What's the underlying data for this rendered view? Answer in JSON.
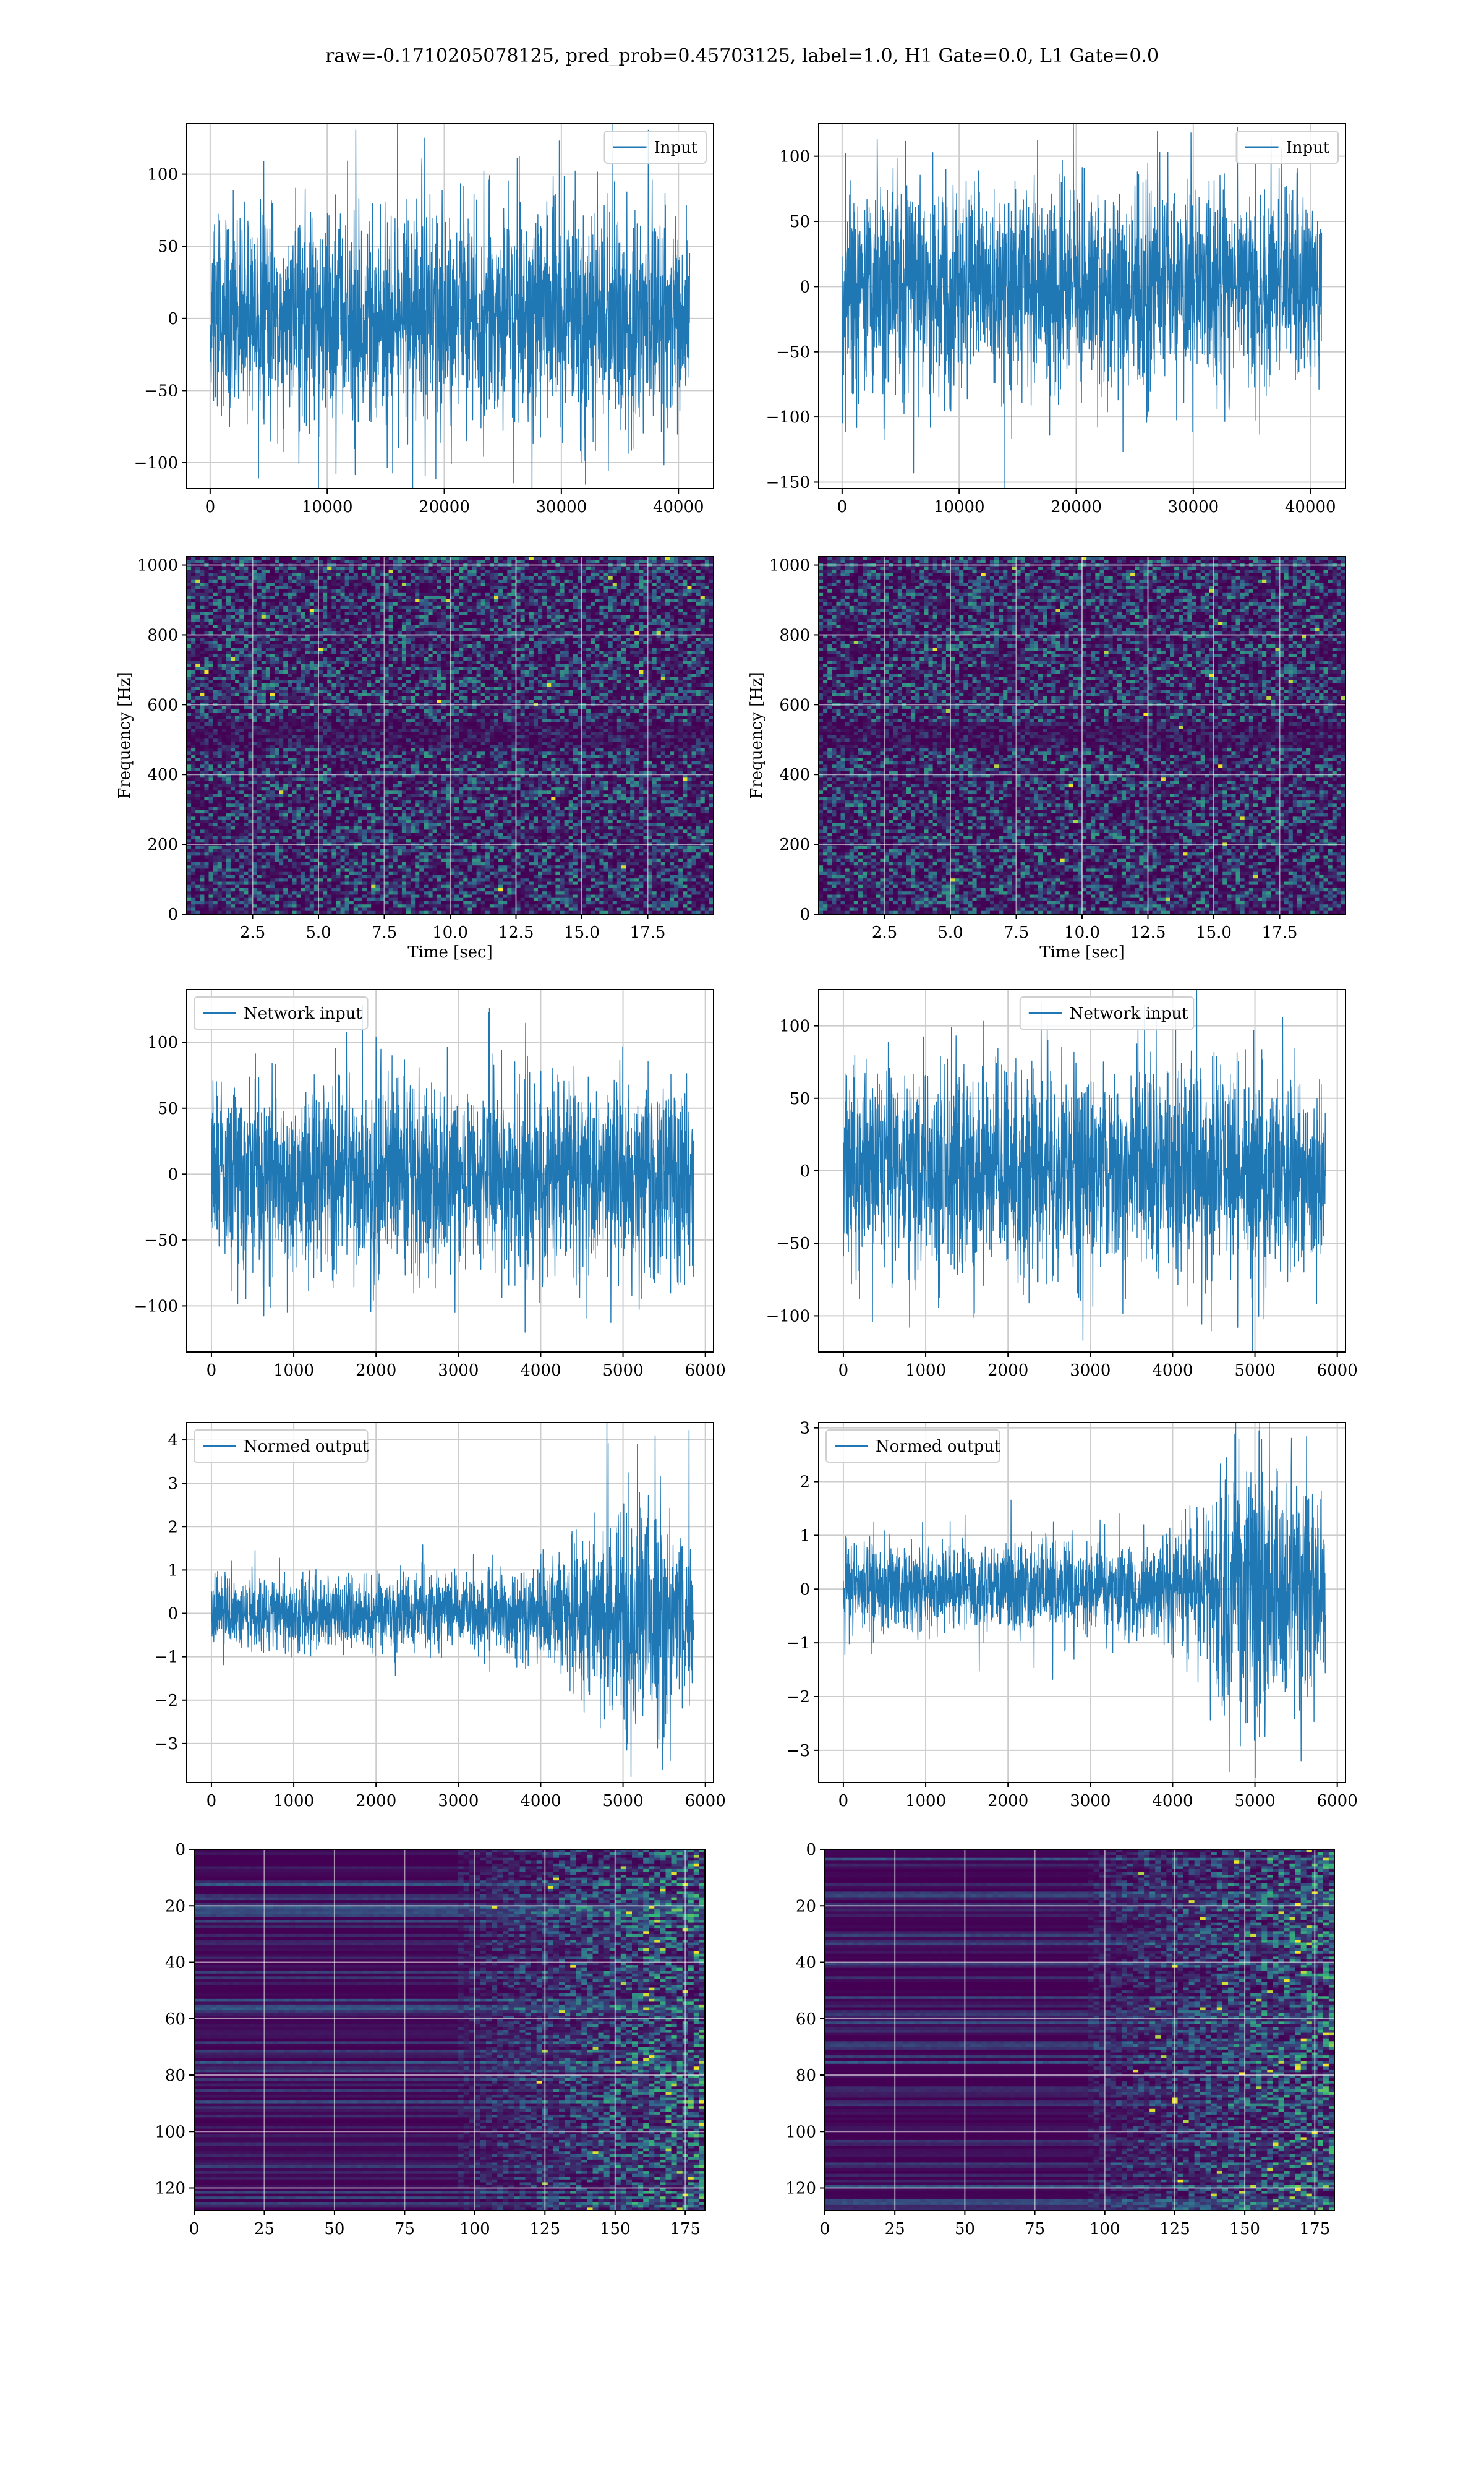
{
  "title": "raw=-0.1710205078125, pred_prob=0.45703125, label=1.0, H1 Gate=0.0, L1 Gate=0.0",
  "colors": {
    "line": "#1f77b4",
    "grid": "#cccccc",
    "spec_base": "#440154",
    "spec_mid": "#31688e",
    "spec_high": "#35b779",
    "spec_peak": "#fde725"
  },
  "chart_data": [
    {
      "type": "line",
      "name": "input-left",
      "legend": "Input",
      "legend_loc": "upper right",
      "xlim": [
        -2000,
        43000
      ],
      "ylim": [
        -118,
        135
      ],
      "xticks": [
        0,
        10000,
        20000,
        30000,
        40000
      ],
      "yticks": [
        -100,
        -50,
        0,
        50,
        100
      ],
      "x_range": [
        0,
        40960
      ],
      "amp": 38,
      "spike_max": 123,
      "spike_min": -115,
      "envelope": [
        1,
        1,
        1,
        1,
        1,
        1,
        1,
        1,
        1,
        1,
        1,
        1,
        1,
        1,
        1,
        1,
        1,
        1,
        1,
        1,
        1,
        1,
        1,
        1
      ],
      "grid": true
    },
    {
      "type": "line",
      "name": "input-right",
      "legend": "Input",
      "legend_loc": "upper right",
      "xlim": [
        -2000,
        43000
      ],
      "ylim": [
        -155,
        125
      ],
      "xticks": [
        0,
        10000,
        20000,
        30000,
        40000
      ],
      "yticks": [
        -150,
        -100,
        -50,
        0,
        50,
        100
      ],
      "x_range": [
        0,
        40960
      ],
      "amp": 38,
      "spike_max": 122,
      "spike_min": -143,
      "envelope": [
        1,
        1,
        1,
        1,
        1,
        1,
        1,
        1,
        1,
        1,
        1,
        1,
        1,
        1,
        1,
        1,
        1,
        1,
        1,
        1,
        1,
        1,
        1,
        1
      ],
      "grid": true
    },
    {
      "type": "heatmap",
      "name": "spectrogram-left",
      "xlabel": "Time [sec]",
      "ylabel": "Frequency [Hz]",
      "xlim": [
        0,
        20
      ],
      "ylim": [
        0,
        1024
      ],
      "xticks": [
        2.5,
        5.0,
        7.5,
        10.0,
        12.5,
        15.0,
        17.5
      ],
      "xtick_labels": [
        "2.5",
        "5.0",
        "7.5",
        "10.0",
        "12.5",
        "15.0",
        "17.5"
      ],
      "yticks": [
        0,
        200,
        400,
        600,
        800,
        1000
      ],
      "grid": true
    },
    {
      "type": "heatmap",
      "name": "spectrogram-right",
      "xlabel": "Time [sec]",
      "ylabel": "Frequency [Hz]",
      "xlim": [
        0,
        20
      ],
      "ylim": [
        0,
        1024
      ],
      "xticks": [
        2.5,
        5.0,
        7.5,
        10.0,
        12.5,
        15.0,
        17.5
      ],
      "xtick_labels": [
        "2.5",
        "5.0",
        "7.5",
        "10.0",
        "12.5",
        "15.0",
        "17.5"
      ],
      "yticks": [
        0,
        200,
        400,
        600,
        800,
        1000
      ],
      "grid": true
    },
    {
      "type": "line",
      "name": "network-input-left",
      "legend": "Network input",
      "legend_loc": "upper left",
      "xlim": [
        -300,
        6100
      ],
      "ylim": [
        -135,
        140
      ],
      "xticks": [
        0,
        1000,
        2000,
        3000,
        4000,
        5000,
        6000
      ],
      "yticks": [
        -100,
        -50,
        0,
        50,
        100
      ],
      "x_range": [
        0,
        5856
      ],
      "amp": 36,
      "spike_max": 128,
      "spike_min": -120,
      "envelope": [
        1,
        1,
        1,
        1,
        1,
        1,
        1,
        1,
        1,
        1,
        1,
        1,
        1,
        1,
        1,
        1,
        1,
        1,
        1,
        1,
        1,
        1,
        1,
        1
      ],
      "grid": true
    },
    {
      "type": "line",
      "name": "network-input-right",
      "legend": "Network input",
      "legend_loc": "upper center",
      "xlim": [
        -300,
        6100
      ],
      "ylim": [
        -125,
        125
      ],
      "xticks": [
        0,
        1000,
        2000,
        3000,
        4000,
        5000,
        6000
      ],
      "yticks": [
        -100,
        -50,
        0,
        50,
        100
      ],
      "x_range": [
        0,
        5856
      ],
      "amp": 36,
      "spike_max": 116,
      "spike_min": -108,
      "envelope": [
        1,
        1,
        1,
        1,
        1,
        1,
        1,
        1,
        1,
        1,
        1,
        1,
        1,
        1,
        1,
        1,
        1,
        1,
        1,
        1,
        1,
        1,
        1,
        1
      ],
      "grid": true
    },
    {
      "type": "line",
      "name": "normed-output-left",
      "legend": "Normed output",
      "legend_loc": "upper left",
      "xlim": [
        -300,
        6100
      ],
      "ylim": [
        -3.9,
        4.4
      ],
      "xticks": [
        0,
        1000,
        2000,
        3000,
        4000,
        5000,
        6000
      ],
      "yticks": [
        -3,
        -2,
        -1,
        0,
        1,
        2,
        3,
        4
      ],
      "x_range": [
        0,
        5856
      ],
      "amp": 0.42,
      "spike_max": 4.1,
      "spike_min": -3.6,
      "envelope": [
        1,
        1,
        1,
        1,
        1,
        1,
        1,
        1,
        1,
        1,
        1,
        1,
        1,
        1.1,
        1.2,
        1.3,
        1.5,
        1.8,
        2.2,
        2.7,
        3.1,
        3.2,
        3.0,
        2.8
      ],
      "grid": true
    },
    {
      "type": "line",
      "name": "normed-output-right",
      "legend": "Normed output",
      "legend_loc": "upper left",
      "xlim": [
        -300,
        6100
      ],
      "ylim": [
        -3.6,
        3.1
      ],
      "xticks": [
        0,
        1000,
        2000,
        3000,
        4000,
        5000,
        6000
      ],
      "yticks": [
        -3,
        -2,
        -1,
        0,
        1,
        2,
        3
      ],
      "x_range": [
        0,
        5856
      ],
      "amp": 0.42,
      "spike_max": 2.8,
      "spike_min": -3.4,
      "envelope": [
        1,
        1,
        1,
        1,
        1,
        1,
        1,
        1,
        1,
        1,
        1,
        1,
        1,
        1,
        1,
        1.05,
        1.1,
        1.3,
        2.8,
        3.3,
        3.2,
        3.0,
        2.5,
        2.0
      ],
      "grid": true
    },
    {
      "type": "heatmap",
      "name": "feature-map-left",
      "xlim": [
        0,
        182
      ],
      "ylim": [
        128,
        0
      ],
      "xticks": [
        0,
        25,
        50,
        75,
        100,
        125,
        150,
        175
      ],
      "yticks": [
        0,
        20,
        40,
        60,
        80,
        100,
        120
      ],
      "grid": true
    },
    {
      "type": "heatmap",
      "name": "feature-map-right",
      "xlim": [
        0,
        182
      ],
      "ylim": [
        128,
        0
      ],
      "xticks": [
        0,
        25,
        50,
        75,
        100,
        125,
        150,
        175
      ],
      "yticks": [
        0,
        20,
        40,
        60,
        80,
        100,
        120
      ],
      "grid": true
    }
  ]
}
